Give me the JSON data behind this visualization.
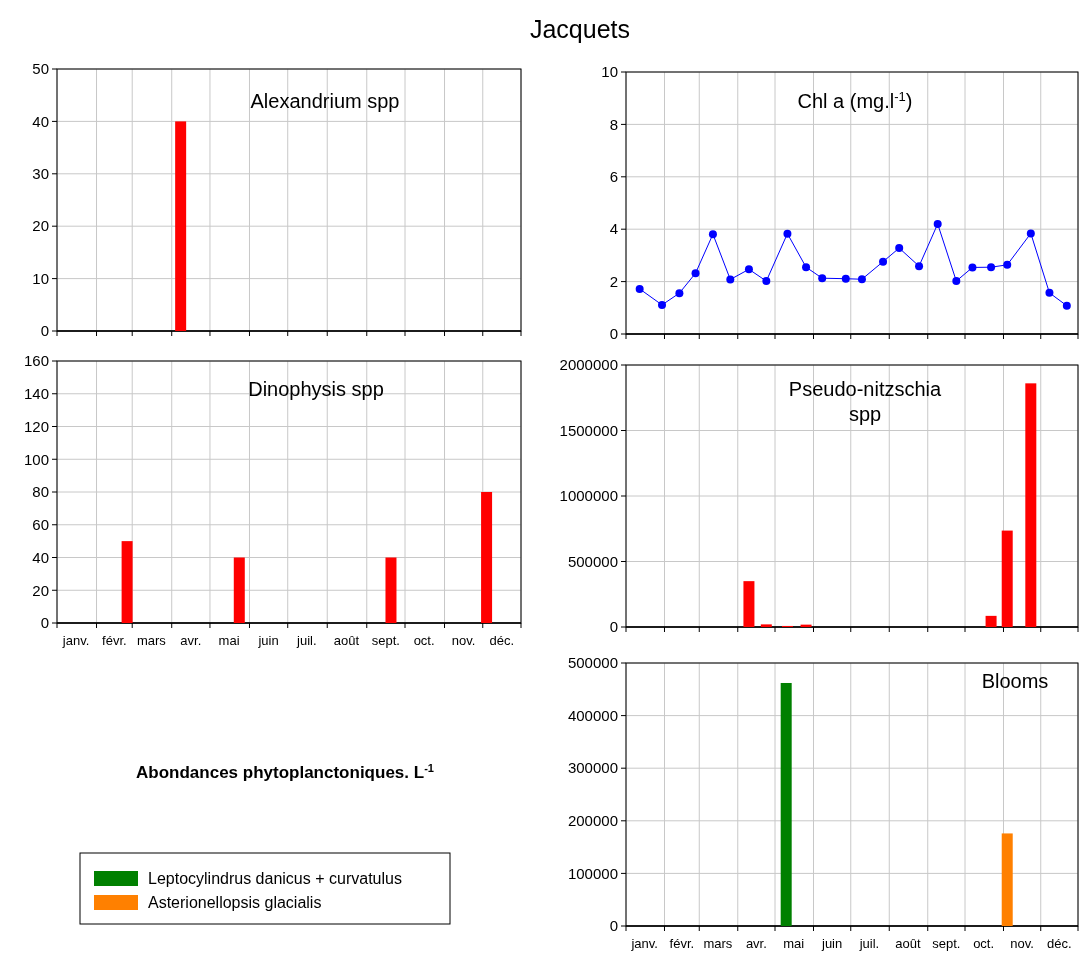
{
  "chart_data": [
    {
      "type": "bar",
      "title": "Alexandrium spp",
      "x": [
        "--04-08"
      ],
      "values": [
        40
      ],
      "color": "#ff0000",
      "xlim": [
        "--01-01",
        "--12-31"
      ],
      "ylim": [
        0,
        50
      ],
      "yticks": [
        0,
        10,
        20,
        30,
        40,
        50
      ],
      "xticks": [
        {
          "value": "--01-01",
          "label": null
        },
        {
          "value": "--02-01",
          "label": null
        },
        {
          "value": "--03-01",
          "label": null
        },
        {
          "value": "--04-01",
          "label": null
        },
        {
          "value": "--05-01",
          "label": null
        },
        {
          "value": "--06-01",
          "label": null
        },
        {
          "value": "--07-01",
          "label": null
        },
        {
          "value": "--08-01",
          "label": null
        },
        {
          "value": "--09-01",
          "label": null
        },
        {
          "value": "--10-01",
          "label": null
        },
        {
          "value": "--11-01",
          "label": null
        },
        {
          "value": "--12-01",
          "label": null
        },
        {
          "value": "--12-31",
          "label": null
        }
      ],
      "grid": true,
      "tick_labels": "y"
    },
    {
      "type": "line",
      "title": "Chl a (mg.l$^{-1}$)",
      "x": [
        "--01-12",
        "--01-30",
        "--02-13",
        "--02-26",
        "--03-12",
        "--03-26",
        "--04-10",
        "--04-24",
        "--05-11",
        "--05-26",
        "--06-08",
        "--06-27",
        "--07-10",
        "--07-27",
        "--08-09",
        "--08-25",
        "--09-09",
        "--09-24",
        "--10-07",
        "--10-22",
        "--11-04",
        "--11-23",
        "--12-08",
        "--12-22"
      ],
      "values": [
        1.72,
        1.11,
        1.56,
        2.32,
        3.81,
        2.08,
        2.47,
        2.02,
        3.83,
        2.55,
        2.13,
        2.11,
        2.09,
        2.76,
        3.28,
        2.59,
        4.2,
        2.02,
        2.54,
        2.55,
        2.64,
        3.84,
        1.57,
        1.08
      ],
      "color": "#0000ff",
      "marker": "circle",
      "xlim": [
        "--01-01",
        "--12-31"
      ],
      "ylim": [
        0,
        10
      ],
      "yticks": [
        0,
        2,
        4,
        6,
        8,
        10
      ],
      "xticks": [
        {
          "value": "--01-01",
          "label": null
        },
        {
          "value": "--02-01",
          "label": null
        },
        {
          "value": "--03-01",
          "label": null
        },
        {
          "value": "--04-01",
          "label": null
        },
        {
          "value": "--05-01",
          "label": null
        },
        {
          "value": "--06-01",
          "label": null
        },
        {
          "value": "--07-01",
          "label": null
        },
        {
          "value": "--08-01",
          "label": null
        },
        {
          "value": "--09-01",
          "label": null
        },
        {
          "value": "--10-01",
          "label": null
        },
        {
          "value": "--11-01",
          "label": null
        },
        {
          "value": "--12-01",
          "label": null
        },
        {
          "value": "--12-31",
          "label": null
        }
      ],
      "grid": true,
      "tick_labels": "y"
    },
    {
      "type": "bar",
      "title": "Dinophysis spp",
      "x": [
        "--02-25",
        "--05-24",
        "--09-20",
        "--12-04"
      ],
      "values": [
        50,
        40,
        40,
        80
      ],
      "color": "#ff0000",
      "xlim": [
        "--01-01",
        "--12-31"
      ],
      "ylim": [
        0,
        160
      ],
      "yticks": [
        0,
        20,
        40,
        60,
        80,
        100,
        120,
        140,
        160
      ],
      "xticks": [
        {
          "value": "--01-01",
          "label": null
        },
        {
          "value": "--01-16",
          "label": "janv."
        },
        {
          "value": "--02-01",
          "label": null
        },
        {
          "value": "--02-15",
          "label": "févr."
        },
        {
          "value": "--03-01",
          "label": null
        },
        {
          "value": "--03-16",
          "label": "mars"
        },
        {
          "value": "--04-01",
          "label": null
        },
        {
          "value": "--04-16",
          "label": "avr."
        },
        {
          "value": "--05-01",
          "label": null
        },
        {
          "value": "--05-16",
          "label": "mai"
        },
        {
          "value": "--06-01",
          "label": null
        },
        {
          "value": "--06-16",
          "label": "juin"
        },
        {
          "value": "--07-01",
          "label": null
        },
        {
          "value": "--07-16",
          "label": "juil."
        },
        {
          "value": "--08-01",
          "label": null
        },
        {
          "value": "--08-16",
          "label": "août"
        },
        {
          "value": "--09-01",
          "label": null
        },
        {
          "value": "--09-16",
          "label": "sept."
        },
        {
          "value": "--10-01",
          "label": null
        },
        {
          "value": "--10-16",
          "label": "oct."
        },
        {
          "value": "--11-01",
          "label": null
        },
        {
          "value": "--11-16",
          "label": "nov."
        },
        {
          "value": "--12-01",
          "label": null
        },
        {
          "value": "--12-16",
          "label": "déc."
        },
        {
          "value": "--12-31",
          "label": null
        }
      ],
      "grid": true
    },
    {
      "type": "bar",
      "title": "Pseudo-nitzschia spp",
      "x": [
        "--04-10",
        "--04-24",
        "--05-11",
        "--05-26",
        "--10-22",
        "--11-04",
        "--11-23"
      ],
      "values": [
        350000,
        20000,
        8000,
        18000,
        85000,
        736000,
        1860000
      ],
      "color": "#ff0000",
      "xlim": [
        "--01-01",
        "--12-31"
      ],
      "ylim": [
        0,
        2000000
      ],
      "yticks": [
        0,
        500000,
        1000000,
        1500000,
        2000000
      ],
      "xticks": [
        {
          "value": "--01-01",
          "label": null
        },
        {
          "value": "--02-01",
          "label": null
        },
        {
          "value": "--03-01",
          "label": null
        },
        {
          "value": "--04-01",
          "label": null
        },
        {
          "value": "--05-01",
          "label": null
        },
        {
          "value": "--06-01",
          "label": null
        },
        {
          "value": "--07-01",
          "label": null
        },
        {
          "value": "--08-01",
          "label": null
        },
        {
          "value": "--09-01",
          "label": null
        },
        {
          "value": "--10-01",
          "label": null
        },
        {
          "value": "--11-01",
          "label": null
        },
        {
          "value": "--12-01",
          "label": null
        },
        {
          "value": "--12-31",
          "label": null
        }
      ],
      "grid": true,
      "tick_labels": "y"
    },
    {
      "type": "bar",
      "title": "Blooms",
      "series": [
        {
          "name": "Leptocylindrus danicus + curvatulus",
          "color": "#008000",
          "x": [
            "--05-10"
          ],
          "values": [
            462000
          ]
        },
        {
          "name": "Asterionellopsis glacialis",
          "color": "#ff8000",
          "x": [
            "--11-04"
          ],
          "values": [
            176000
          ]
        }
      ],
      "legend": "bottom left",
      "xlim": [
        "--01-01",
        "--12-31"
      ],
      "ylim": [
        0,
        500000
      ],
      "yticks": [
        0,
        100000,
        200000,
        300000,
        400000,
        500000
      ],
      "xticks": [
        {
          "value": "--01-01",
          "label": null
        },
        {
          "value": "--01-16",
          "label": "janv."
        },
        {
          "value": "--02-01",
          "label": null
        },
        {
          "value": "--02-15",
          "label": "févr."
        },
        {
          "value": "--03-01",
          "label": null
        },
        {
          "value": "--03-16",
          "label": "mars"
        },
        {
          "value": "--04-01",
          "label": null
        },
        {
          "value": "--04-16",
          "label": "avr."
        },
        {
          "value": "--05-01",
          "label": null
        },
        {
          "value": "--05-16",
          "label": "mai"
        },
        {
          "value": "--06-01",
          "label": null
        },
        {
          "value": "--06-16",
          "label": "juin"
        },
        {
          "value": "--07-01",
          "label": null
        },
        {
          "value": "--07-16",
          "label": "juil."
        },
        {
          "value": "--08-01",
          "label": null
        },
        {
          "value": "--08-16",
          "label": "août"
        },
        {
          "value": "--09-01",
          "label": null
        },
        {
          "value": "--09-16",
          "label": "sept."
        },
        {
          "value": "--10-01",
          "label": null
        },
        {
          "value": "--10-16",
          "label": "oct."
        },
        {
          "value": "--11-01",
          "label": null
        },
        {
          "value": "--11-16",
          "label": "nov."
        },
        {
          "value": "--12-01",
          "label": null
        },
        {
          "value": "--12-16",
          "label": "déc."
        },
        {
          "value": "--12-31",
          "label": null
        }
      ],
      "grid": true
    },
    {
      "type": "other",
      "title": "Jacquets",
      "annotations": [
        "Abondances phytoplanctoniques. L$^{-1}$"
      ]
    }
  ]
}
